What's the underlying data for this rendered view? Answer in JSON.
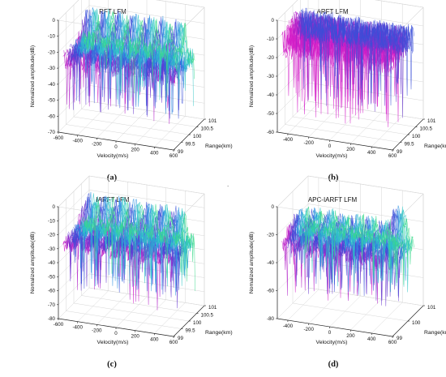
{
  "figure": {
    "panels": [
      {
        "title": "RFT LFM",
        "caption": "(a)"
      },
      {
        "title": "ARFT LFM",
        "caption": "(b)"
      },
      {
        "title": "IARFT LFM",
        "caption": "(c)"
      },
      {
        "title": "APC-IARFT LFM",
        "caption": "(d)"
      }
    ],
    "stray_mark": "."
  },
  "colors": {
    "background": "#ffffff",
    "box_line": "#d6d6d6",
    "axis_line": "#222222",
    "text": "#111111",
    "colormap": [
      "#39d98a",
      "#2fc6c6",
      "#2b8fe0",
      "#3a4fd8",
      "#6a3ad0",
      "#b11fc8",
      "#d41ec8"
    ]
  },
  "chart_data": [
    {
      "type": "surface",
      "title": "RFT LFM",
      "xlabel": "Velocity(m/s)",
      "ylabel": "Range(km)",
      "zlabel": "Nomalized amplitude(dB)",
      "x_ticks": [
        "-600",
        "-400",
        "-200",
        "0",
        "200",
        "400",
        "600"
      ],
      "y_ticks": [
        "99",
        "99.5",
        "100",
        "100.5",
        "101"
      ],
      "z_ticks": [
        "-70",
        "-60",
        "-50",
        "-40",
        "-30",
        "-20",
        "-10",
        "0"
      ],
      "xlim": [
        -600,
        600
      ],
      "ylim": [
        99,
        101
      ],
      "zlim": [
        -70,
        0
      ],
      "noise_floor_db": -28,
      "peaks": [
        {
          "velocity": -450,
          "amplitude_db": -3
        },
        {
          "velocity": -300,
          "amplitude_db": -3
        },
        {
          "velocity": -150,
          "amplitude_db": -3
        },
        {
          "velocity": 0,
          "amplitude_db": -3
        },
        {
          "velocity": 150,
          "amplitude_db": -3
        },
        {
          "velocity": 300,
          "amplitude_db": -3
        },
        {
          "velocity": 450,
          "amplitude_db": -3
        }
      ],
      "min_dip_db": -62
    },
    {
      "type": "surface",
      "title": "ARFT LFM",
      "xlabel": "Velocity(m/s)",
      "ylabel": "Range(km)",
      "zlabel": "Nomalized amplitude(dB)",
      "x_ticks": [
        "-400",
        "-200",
        "0",
        "200",
        "400",
        "600"
      ],
      "y_ticks": [
        "99",
        "99.5",
        "100",
        "100.5",
        "101"
      ],
      "z_ticks": [
        "-60",
        "-50",
        "-40",
        "-30",
        "-20",
        "-10",
        "0"
      ],
      "xlim": [
        -500,
        600
      ],
      "ylim": [
        99,
        101
      ],
      "zlim": [
        -60,
        0
      ],
      "noise_floor_db": -18,
      "peaks": [],
      "min_dip_db": -55
    },
    {
      "type": "surface",
      "title": "IARFT LFM",
      "xlabel": "Velocity(m/s)",
      "ylabel": "Range(km)",
      "zlabel": "Nomalized amplitude(dB)",
      "x_ticks": [
        "-600",
        "-400",
        "-200",
        "0",
        "200",
        "400",
        "600"
      ],
      "y_ticks": [
        "99",
        "99.5",
        "100",
        "100.5",
        "101"
      ],
      "z_ticks": [
        "-80",
        "-70",
        "-60",
        "-50",
        "-40",
        "-30",
        "-20",
        "-10",
        "0"
      ],
      "xlim": [
        -600,
        600
      ],
      "ylim": [
        99,
        101
      ],
      "zlim": [
        -80,
        0
      ],
      "noise_floor_db": -30,
      "peaks": [
        {
          "velocity": -450,
          "amplitude_db": -3
        },
        {
          "velocity": -300,
          "amplitude_db": -3
        },
        {
          "velocity": -150,
          "amplitude_db": -3
        },
        {
          "velocity": 0,
          "amplitude_db": -3
        },
        {
          "velocity": 150,
          "amplitude_db": -3
        },
        {
          "velocity": 300,
          "amplitude_db": -3
        },
        {
          "velocity": 450,
          "amplitude_db": -3
        }
      ],
      "min_dip_db": -68
    },
    {
      "type": "surface",
      "title": "APC-IARFT LFM",
      "xlabel": "Velocity(m/s)",
      "ylabel": "Range(km)",
      "zlabel": "Nomalized amplitude(dB)",
      "x_ticks": [
        "-400",
        "-200",
        "0",
        "200",
        "400",
        "600"
      ],
      "y_ticks": [
        "99",
        "100",
        "101"
      ],
      "z_ticks": [
        "-80",
        "-60",
        "-40",
        "-20",
        "0"
      ],
      "xlim": [
        -500,
        600
      ],
      "ylim": [
        99,
        101
      ],
      "zlim": [
        -80,
        0
      ],
      "noise_floor_db": -32,
      "peaks": [
        {
          "velocity": -450,
          "amplitude_db": -15
        },
        {
          "velocity": -320,
          "amplitude_db": -15
        },
        {
          "velocity": -190,
          "amplitude_db": -15
        },
        {
          "velocity": -60,
          "amplitude_db": -15
        },
        {
          "velocity": 70,
          "amplitude_db": -15
        },
        {
          "velocity": 200,
          "amplitude_db": -15
        },
        {
          "velocity": 330,
          "amplitude_db": -15
        },
        {
          "velocity": 480,
          "amplitude_db": -2
        }
      ],
      "min_dip_db": -68
    }
  ]
}
